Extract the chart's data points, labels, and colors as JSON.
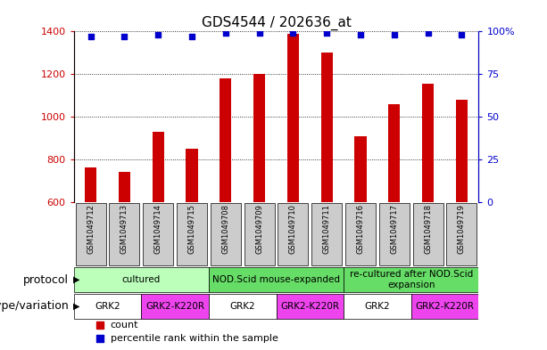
{
  "title": "GDS4544 / 202636_at",
  "samples": [
    "GSM1049712",
    "GSM1049713",
    "GSM1049714",
    "GSM1049715",
    "GSM1049708",
    "GSM1049709",
    "GSM1049710",
    "GSM1049711",
    "GSM1049716",
    "GSM1049717",
    "GSM1049718",
    "GSM1049719"
  ],
  "counts": [
    760,
    740,
    930,
    850,
    1180,
    1200,
    1390,
    1300,
    910,
    1060,
    1155,
    1080
  ],
  "percentiles": [
    97,
    97,
    98,
    97,
    99,
    99,
    99,
    99,
    98,
    98,
    99,
    98
  ],
  "ymin": 600,
  "ymax": 1400,
  "yticks": [
    600,
    800,
    1000,
    1200,
    1400
  ],
  "y2ticks": [
    0,
    25,
    50,
    75,
    100
  ],
  "bar_color": "#cc0000",
  "dot_color": "#0000cc",
  "bar_width": 0.35,
  "protocol_groups": [
    {
      "name": "cultured",
      "x_start": -0.5,
      "x_end": 3.5,
      "color": "#bbffbb"
    },
    {
      "name": "NOD.Scid mouse-expanded",
      "x_start": 3.5,
      "x_end": 7.5,
      "color": "#66dd66"
    },
    {
      "name": "re-cultured after NOD.Scid\nexpansion",
      "x_start": 7.5,
      "x_end": 11.5,
      "color": "#66dd66"
    }
  ],
  "genotype_groups": [
    {
      "name": "GRK2",
      "x_start": -0.5,
      "x_end": 1.5,
      "color": "#ffffff"
    },
    {
      "name": "GRK2-K220R",
      "x_start": 1.5,
      "x_end": 3.5,
      "color": "#ee44ee"
    },
    {
      "name": "GRK2",
      "x_start": 3.5,
      "x_end": 5.5,
      "color": "#ffffff"
    },
    {
      "name": "GRK2-K220R",
      "x_start": 5.5,
      "x_end": 7.5,
      "color": "#ee44ee"
    },
    {
      "name": "GRK2",
      "x_start": 7.5,
      "x_end": 9.5,
      "color": "#ffffff"
    },
    {
      "name": "GRK2-K220R",
      "x_start": 9.5,
      "x_end": 11.5,
      "color": "#ee44ee"
    }
  ],
  "protocol_label": "protocol",
  "genotype_label": "genotype/variation",
  "legend_count_label": "count",
  "legend_percentile_label": "percentile rank within the sample",
  "title_fontsize": 11,
  "tick_fontsize": 8,
  "label_fontsize": 9,
  "sample_label_bg": "#cccccc",
  "xlim_min": -0.5,
  "xlim_max": 11.5
}
